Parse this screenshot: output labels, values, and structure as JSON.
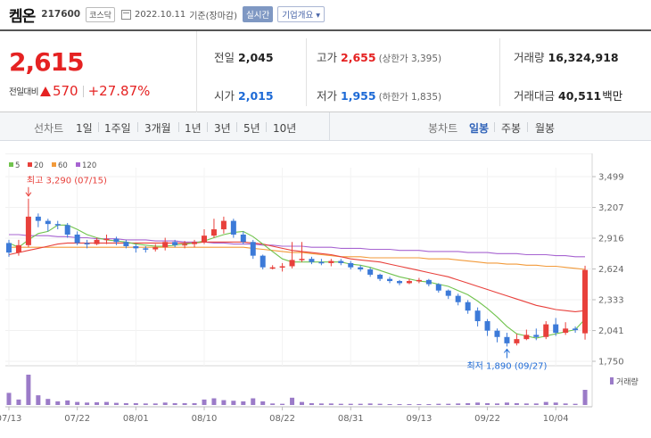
{
  "header": {
    "name": "켐온",
    "code": "217600",
    "market": "코스닥",
    "date": "2022.10.11",
    "basis": "기준(장마감)",
    "realtime_button": "실시간",
    "company_button": "기업개요 ▾"
  },
  "summary": {
    "current_price": "2,615",
    "compare_label": "전일대비",
    "change": "570",
    "change_pct": "+27.87%",
    "prev_close_label": "전일",
    "prev_close": "2,045",
    "open_label": "시가",
    "open": "2,015",
    "high_label": "고가",
    "high": "2,655",
    "upper_limit": "(상한가 3,395)",
    "low_label": "저가",
    "low": "1,955",
    "lower_limit": "(하한가 1,835)",
    "volume_label": "거래량",
    "volume": "16,324,918",
    "amount_label": "거래대금",
    "amount": "40,511",
    "amount_unit": "백만"
  },
  "toolbar": {
    "line_chart_label": "선차트",
    "line_periods": [
      "1일",
      "1주일",
      "3개월",
      "1년",
      "3년",
      "5년",
      "10년"
    ],
    "candle_chart_label": "봉차트",
    "candle_periods": [
      "일봉",
      "주봉",
      "월봉"
    ],
    "active_candle": "일봉"
  },
  "chart_data": {
    "type": "candlestick",
    "colors": {
      "up": "#e8403b",
      "down": "#3c7ad8",
      "ma5": "#71c34e",
      "ma20": "#e8403b",
      "ma60": "#f29a3a",
      "ma120": "#a764d1",
      "volume": "#9b7bc8"
    },
    "legend": [
      {
        "name": "5",
        "color": "#71c34e"
      },
      {
        "name": "20",
        "color": "#e8403b"
      },
      {
        "name": "60",
        "color": "#f29a3a"
      },
      {
        "name": "120",
        "color": "#a764d1"
      }
    ],
    "y_ticks": [
      "3,499",
      "3,207",
      "2,916",
      "2,624",
      "2,333",
      "2,041",
      "1,750"
    ],
    "ylim": [
      1750,
      3499
    ],
    "x_ticks": [
      {
        "label": "07/13",
        "index": 0
      },
      {
        "label": "07/22",
        "index": 7
      },
      {
        "label": "08/01",
        "index": 13
      },
      {
        "label": "08/10",
        "index": 20
      },
      {
        "label": "08/22",
        "index": 28
      },
      {
        "label": "08/31",
        "index": 35
      },
      {
        "label": "09/13",
        "index": 42
      },
      {
        "label": "09/22",
        "index": 49
      },
      {
        "label": "10/04",
        "index": 56
      }
    ],
    "high_annotation": {
      "text": "최고 3,290 (07/15)",
      "index": 2,
      "value": 3290
    },
    "low_annotation": {
      "text": "최저 1,890 (09/27)",
      "index": 51,
      "value": 1890
    },
    "volume_label": "거래량",
    "candles": [
      [
        2870,
        2780,
        2900,
        2740
      ],
      [
        2780,
        2850,
        2900,
        2750
      ],
      [
        2850,
        3120,
        3290,
        2830
      ],
      [
        3120,
        3080,
        3150,
        3020
      ],
      [
        3080,
        3050,
        3100,
        2980
      ],
      [
        3050,
        3040,
        3080,
        3000
      ],
      [
        3040,
        2950,
        3060,
        2920
      ],
      [
        2950,
        2870,
        2980,
        2850
      ],
      [
        2870,
        2860,
        2900,
        2820
      ],
      [
        2860,
        2900,
        2920,
        2850
      ],
      [
        2900,
        2910,
        2950,
        2860
      ],
      [
        2910,
        2880,
        2930,
        2850
      ],
      [
        2880,
        2840,
        2900,
        2820
      ],
      [
        2840,
        2820,
        2860,
        2780
      ],
      [
        2820,
        2810,
        2840,
        2780
      ],
      [
        2810,
        2830,
        2860,
        2790
      ],
      [
        2830,
        2880,
        2920,
        2800
      ],
      [
        2880,
        2850,
        2900,
        2830
      ],
      [
        2850,
        2860,
        2890,
        2820
      ],
      [
        2860,
        2880,
        2900,
        2830
      ],
      [
        2880,
        2940,
        3000,
        2860
      ],
      [
        2940,
        3000,
        3100,
        2920
      ],
      [
        3000,
        3080,
        3120,
        2960
      ],
      [
        3080,
        2950,
        3100,
        2920
      ],
      [
        2950,
        2880,
        2980,
        2860
      ],
      [
        2880,
        2750,
        2900,
        2720
      ],
      [
        2750,
        2640,
        2760,
        2620
      ],
      [
        2640,
        2640,
        2660,
        2620
      ],
      [
        2640,
        2650,
        2680,
        2600
      ],
      [
        2650,
        2710,
        2880,
        2630
      ],
      [
        2710,
        2720,
        2880,
        2690
      ],
      [
        2720,
        2690,
        2740,
        2670
      ],
      [
        2690,
        2680,
        2720,
        2660
      ],
      [
        2680,
        2700,
        2720,
        2650
      ],
      [
        2700,
        2680,
        2720,
        2660
      ],
      [
        2680,
        2640,
        2700,
        2620
      ],
      [
        2640,
        2620,
        2660,
        2600
      ],
      [
        2620,
        2570,
        2640,
        2550
      ],
      [
        2570,
        2530,
        2580,
        2510
      ],
      [
        2530,
        2510,
        2550,
        2490
      ],
      [
        2510,
        2490,
        2520,
        2470
      ],
      [
        2490,
        2510,
        2530,
        2480
      ],
      [
        2510,
        2520,
        2540,
        2490
      ],
      [
        2520,
        2480,
        2530,
        2460
      ],
      [
        2480,
        2420,
        2490,
        2400
      ],
      [
        2420,
        2370,
        2430,
        2340
      ],
      [
        2370,
        2310,
        2390,
        2280
      ],
      [
        2310,
        2230,
        2330,
        2200
      ],
      [
        2230,
        2130,
        2260,
        2080
      ],
      [
        2130,
        2040,
        2150,
        1990
      ],
      [
        2040,
        1980,
        2060,
        1930
      ],
      [
        1980,
        1920,
        2020,
        1890
      ],
      [
        1920,
        1960,
        2010,
        1900
      ],
      [
        1960,
        2000,
        2050,
        1950
      ],
      [
        2000,
        1980,
        2060,
        1950
      ],
      [
        1980,
        2100,
        2130,
        1960
      ],
      [
        2100,
        2020,
        2160,
        1990
      ],
      [
        2020,
        2060,
        2120,
        2000
      ],
      [
        2060,
        2045,
        2080,
        2020
      ],
      [
        2015,
        2615,
        2655,
        1955
      ]
    ],
    "volumes": [
      40,
      18,
      100,
      32,
      20,
      12,
      15,
      10,
      8,
      9,
      10,
      7,
      6,
      6,
      5,
      5,
      8,
      6,
      6,
      6,
      18,
      22,
      16,
      14,
      12,
      22,
      12,
      5,
      4,
      24,
      10,
      6,
      5,
      5,
      4,
      4,
      4,
      5,
      4,
      3,
      3,
      3,
      3,
      3,
      4,
      4,
      5,
      6,
      8,
      6,
      5,
      8,
      6,
      5,
      5,
      10,
      8,
      5,
      4,
      50
    ],
    "ma5": [
      2870,
      2830,
      2900,
      2960,
      2980,
      3040,
      3040,
      3000,
      2950,
      2920,
      2900,
      2890,
      2880,
      2860,
      2850,
      2840,
      2840,
      2850,
      2860,
      2870,
      2890,
      2920,
      2950,
      2970,
      2980,
      2930,
      2860,
      2790,
      2720,
      2690,
      2690,
      2690,
      2690,
      2690,
      2690,
      2670,
      2660,
      2640,
      2610,
      2580,
      2550,
      2530,
      2510,
      2500,
      2480,
      2460,
      2420,
      2380,
      2320,
      2250,
      2170,
      2080,
      2010,
      1990,
      1970,
      1990,
      2010,
      2030,
      2050,
      2150
    ],
    "ma20": [
      2760,
      2780,
      2800,
      2820,
      2840,
      2860,
      2870,
      2870,
      2870,
      2870,
      2870,
      2870,
      2870,
      2870,
      2870,
      2870,
      2870,
      2870,
      2870,
      2870,
      2880,
      2880,
      2880,
      2880,
      2880,
      2870,
      2860,
      2840,
      2820,
      2800,
      2790,
      2780,
      2770,
      2760,
      2740,
      2720,
      2710,
      2700,
      2690,
      2670,
      2650,
      2630,
      2610,
      2590,
      2570,
      2550,
      2520,
      2490,
      2460,
      2430,
      2400,
      2370,
      2340,
      2310,
      2280,
      2260,
      2240,
      2230,
      2220,
      2230
    ],
    "ma60": [
      2830,
      2830,
      2830,
      2830,
      2830,
      2830,
      2830,
      2830,
      2830,
      2830,
      2830,
      2830,
      2830,
      2830,
      2830,
      2830,
      2830,
      2830,
      2830,
      2830,
      2830,
      2830,
      2830,
      2830,
      2830,
      2820,
      2810,
      2800,
      2790,
      2780,
      2780,
      2770,
      2760,
      2750,
      2740,
      2740,
      2740,
      2730,
      2730,
      2730,
      2730,
      2730,
      2730,
      2720,
      2720,
      2720,
      2710,
      2700,
      2690,
      2680,
      2680,
      2670,
      2670,
      2660,
      2660,
      2650,
      2650,
      2640,
      2630,
      2620
    ],
    "ma120": [
      2950,
      2950,
      2940,
      2940,
      2940,
      2930,
      2930,
      2920,
      2920,
      2910,
      2910,
      2910,
      2900,
      2900,
      2900,
      2890,
      2890,
      2890,
      2880,
      2880,
      2880,
      2870,
      2870,
      2860,
      2860,
      2860,
      2850,
      2850,
      2840,
      2840,
      2840,
      2830,
      2830,
      2830,
      2820,
      2820,
      2820,
      2810,
      2810,
      2810,
      2800,
      2800,
      2800,
      2790,
      2790,
      2790,
      2790,
      2780,
      2780,
      2780,
      2770,
      2770,
      2770,
      2760,
      2760,
      2760,
      2750,
      2750,
      2740,
      2740
    ]
  }
}
